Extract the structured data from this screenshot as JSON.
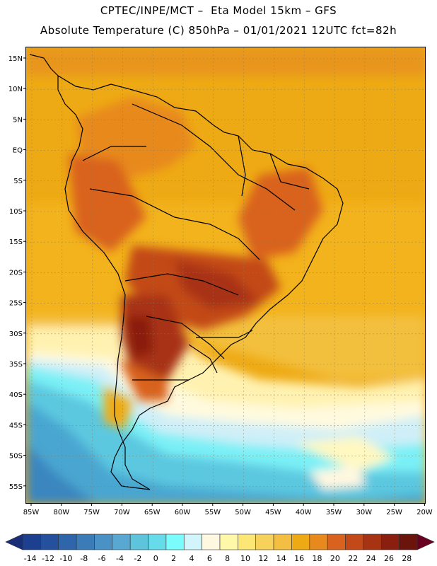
{
  "header": {
    "line1": "CPTEC/INPE/MCT –  Eta Model 15km – GFS",
    "line2": "Absolute Temperature (C) 850hPa – 01/01/2021 12UTC fct=82h"
  },
  "map": {
    "lat_labels": [
      "15N",
      "10N",
      "5N",
      "EQ",
      "5S",
      "10S",
      "15S",
      "20S",
      "25S",
      "30S",
      "35S",
      "40S",
      "45S",
      "50S",
      "55S"
    ],
    "lon_labels": [
      "85W",
      "80W",
      "75W",
      "70W",
      "65W",
      "60W",
      "55W",
      "50W",
      "45W",
      "40W",
      "35W",
      "30W",
      "25W",
      "20W"
    ]
  },
  "colorbar": {
    "labels": [
      "-14",
      "-12",
      "-10",
      "-8",
      "-6",
      "-4",
      "-2",
      "0",
      "2",
      "4",
      "6",
      "8",
      "10",
      "12",
      "14",
      "16",
      "18",
      "20",
      "22",
      "24",
      "26",
      "28"
    ],
    "colors": [
      "#1c3f8f",
      "#25509e",
      "#2f66ab",
      "#3b7cb8",
      "#4a92c6",
      "#59a8d2",
      "#5ec4dc",
      "#66dcea",
      "#7afcfc",
      "#d2f4fb",
      "#fff8e0",
      "#fff8a8",
      "#fbe676",
      "#f7d25a",
      "#f3bf42",
      "#eeaa14",
      "#e8891e",
      "#d9621e",
      "#c34a18",
      "#a83312",
      "#8a1f10",
      "#6a140c"
    ],
    "low_color": "#1a2e78",
    "high_color": "#6a0020"
  }
}
